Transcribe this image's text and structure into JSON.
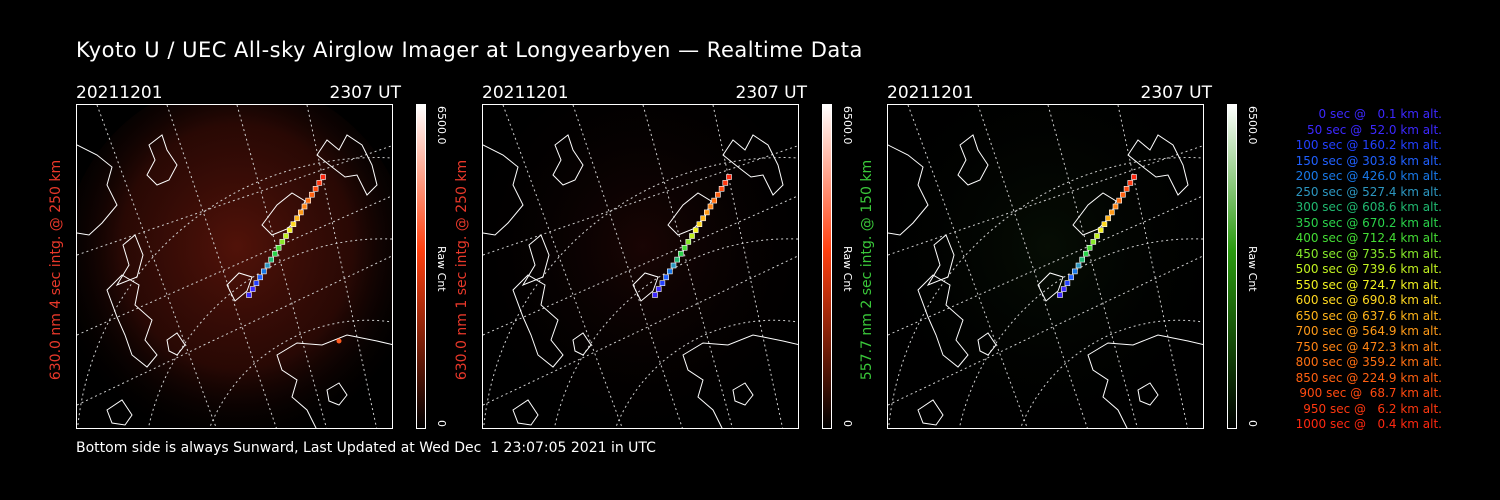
{
  "title": "Kyoto U / UEC All-sky Airglow Imager at Longyearbyen — Realtime Data",
  "panels": [
    {
      "date": "20211201",
      "time": "2307 UT",
      "ylabel": "630.0 nm 4 sec intg. @ 250 km",
      "label_color": "#e8382a",
      "cbar_max": "6500.0",
      "cbar_min": "0",
      "cbar_unit": "Raw Cnt",
      "cbar_color": "#ff4010",
      "glow": "red-strong"
    },
    {
      "date": "20211201",
      "time": "2307 UT",
      "ylabel": "630.0 nm 1 sec intg. @ 250 km",
      "label_color": "#e8382a",
      "cbar_max": "6500.0",
      "cbar_min": "0",
      "cbar_unit": "Raw Cnt",
      "cbar_color": "#ff4010",
      "glow": "red-weak"
    },
    {
      "date": "20211201",
      "time": "2307 UT",
      "ylabel": "557.7 nm 2 sec intg. @ 150 km",
      "label_color": "#3ac83a",
      "cbar_max": "6500.0",
      "cbar_min": "0",
      "cbar_unit": "Raw Cnt",
      "cbar_color": "#2a9a10",
      "glow": "green"
    }
  ],
  "footer": "Bottom side is always Sunward, Last Updated at Wed Dec  1 23:07:05 2021 in UTC",
  "legend": [
    {
      "text": "0 sec @   0.1 km alt.",
      "color": "#3c28ff"
    },
    {
      "text": "50 sec @  52.0 km alt.",
      "color": "#3c28ff"
    },
    {
      "text": "100 sec @ 160.2 km alt.",
      "color": "#2240ff"
    },
    {
      "text": "150 sec @ 303.8 km alt.",
      "color": "#2060ff"
    },
    {
      "text": "200 sec @ 426.0 km alt.",
      "color": "#1878e8"
    },
    {
      "text": "250 sec @ 527.4 km alt.",
      "color": "#2c96c0"
    },
    {
      "text": "300 sec @ 608.6 km alt.",
      "color": "#20b870"
    },
    {
      "text": "350 sec @ 670.2 km alt.",
      "color": "#2ad24a"
    },
    {
      "text": "400 sec @ 712.4 km alt.",
      "color": "#44dc34"
    },
    {
      "text": "450 sec @ 735.5 km alt.",
      "color": "#86e82a"
    },
    {
      "text": "500 sec @ 739.6 km alt.",
      "color": "#c0f020"
    },
    {
      "text": "550 sec @ 724.7 km alt.",
      "color": "#f0f020"
    },
    {
      "text": "600 sec @ 690.8 km alt.",
      "color": "#ffd820"
    },
    {
      "text": "650 sec @ 637.6 km alt.",
      "color": "#ffb418"
    },
    {
      "text": "700 sec @ 564.9 km alt.",
      "color": "#ff9a18"
    },
    {
      "text": "750 sec @ 472.3 km alt.",
      "color": "#ff8414"
    },
    {
      "text": "800 sec @ 359.2 km alt.",
      "color": "#ff7012"
    },
    {
      "text": "850 sec @ 224.9 km alt.",
      "color": "#ff6010"
    },
    {
      "text": "900 sec @  68.7 km alt.",
      "color": "#ff4a10"
    },
    {
      "text": "950 sec @   6.2 km alt.",
      "color": "#ff3810"
    },
    {
      "text": "1000 sec @   0.4 km alt.",
      "color": "#ff2810"
    }
  ]
}
